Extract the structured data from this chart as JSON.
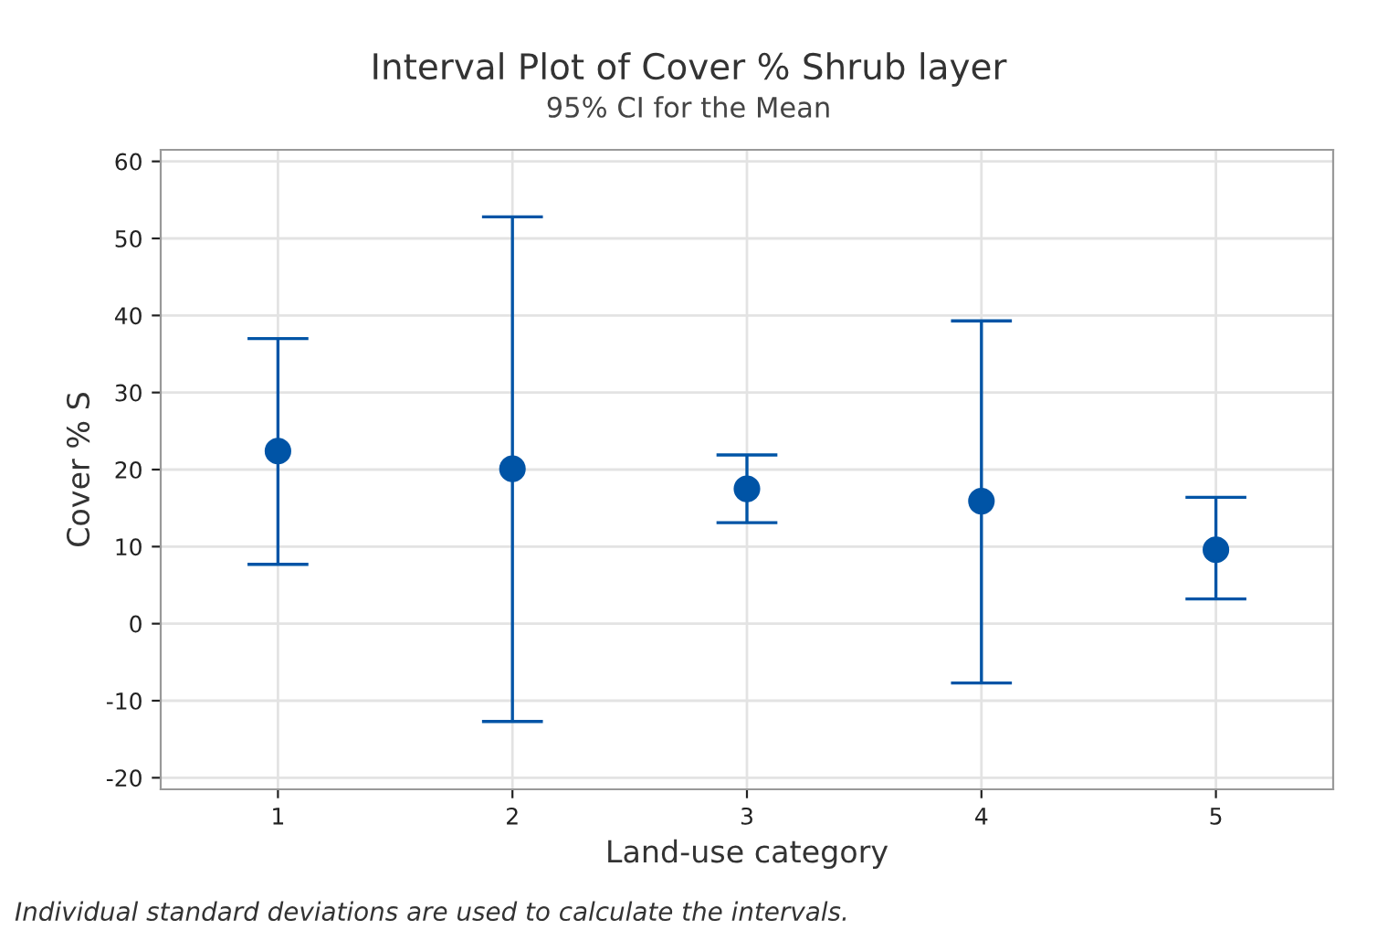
{
  "chart_data": {
    "type": "scatter",
    "title": "Interval Plot of Cover % Shrub layer",
    "subtitle": "95% CI for the Mean",
    "xlabel": "Land-use category",
    "ylabel": "Cover % S",
    "categories": [
      "1",
      "2",
      "3",
      "4",
      "5"
    ],
    "values": [
      22.4,
      20.1,
      17.5,
      15.9,
      9.6
    ],
    "errors": [
      [
        7.7,
        37.0
      ],
      [
        -12.7,
        52.8
      ],
      [
        13.1,
        21.9
      ],
      [
        -7.7,
        39.3
      ],
      [
        3.2,
        16.4
      ]
    ],
    "color": "#0054a6",
    "marker": "circle",
    "ylim": [
      -21.5,
      61.5
    ],
    "yticks": [
      -20,
      -10,
      0,
      10,
      20,
      30,
      40,
      50,
      60
    ],
    "grid": true,
    "annotations": [
      "Individual standard deviations are used to calculate the intervals."
    ]
  }
}
